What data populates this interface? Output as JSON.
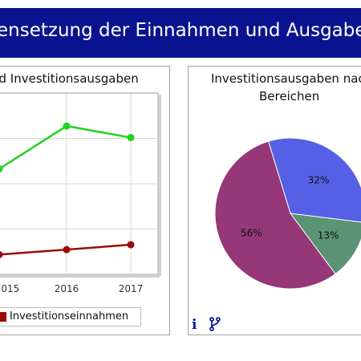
{
  "header": {
    "title": "ensetzung der Einnahmen und Ausgaben a"
  },
  "colors": {
    "banner": "#0a1490",
    "line_expenses": "#22d322",
    "line_income": "#9a0b0b",
    "pie": [
      "#5560e6",
      "#5a9474",
      "#963778"
    ]
  },
  "chart_data": [
    {
      "type": "line",
      "title": "nd Investitionsausgaben",
      "x": [
        "2015",
        "2016",
        "2017"
      ],
      "series": [
        {
          "name": "",
          "color": "#22d322",
          "values": [
            null,
            90,
            83
          ]
        },
        {
          "name": "Investitionseinnahmen",
          "color": "#9a0b0b",
          "values": [
            null,
            15,
            18
          ]
        }
      ],
      "partial_points": [
        {
          "series": 0,
          "value": 64
        },
        {
          "series": 1,
          "value": 12
        }
      ],
      "ylim": [
        0,
        110
      ],
      "grid": true,
      "legend": "bottom"
    },
    {
      "type": "pie",
      "title": "Investitionsausgaben nac Bereichen",
      "title_lines": [
        "Investitionsausgaben nac",
        "Bereichen"
      ],
      "slices": [
        {
          "label": "32%",
          "value": 32,
          "color": "#5560e6"
        },
        {
          "label": "13%",
          "value": 13,
          "color": "#5a9474"
        },
        {
          "label": "56%",
          "value": 56,
          "color": "#963778"
        }
      ]
    }
  ],
  "toolbar": {
    "info_icon": "info-icon",
    "fork_icon": "fork-icon"
  }
}
